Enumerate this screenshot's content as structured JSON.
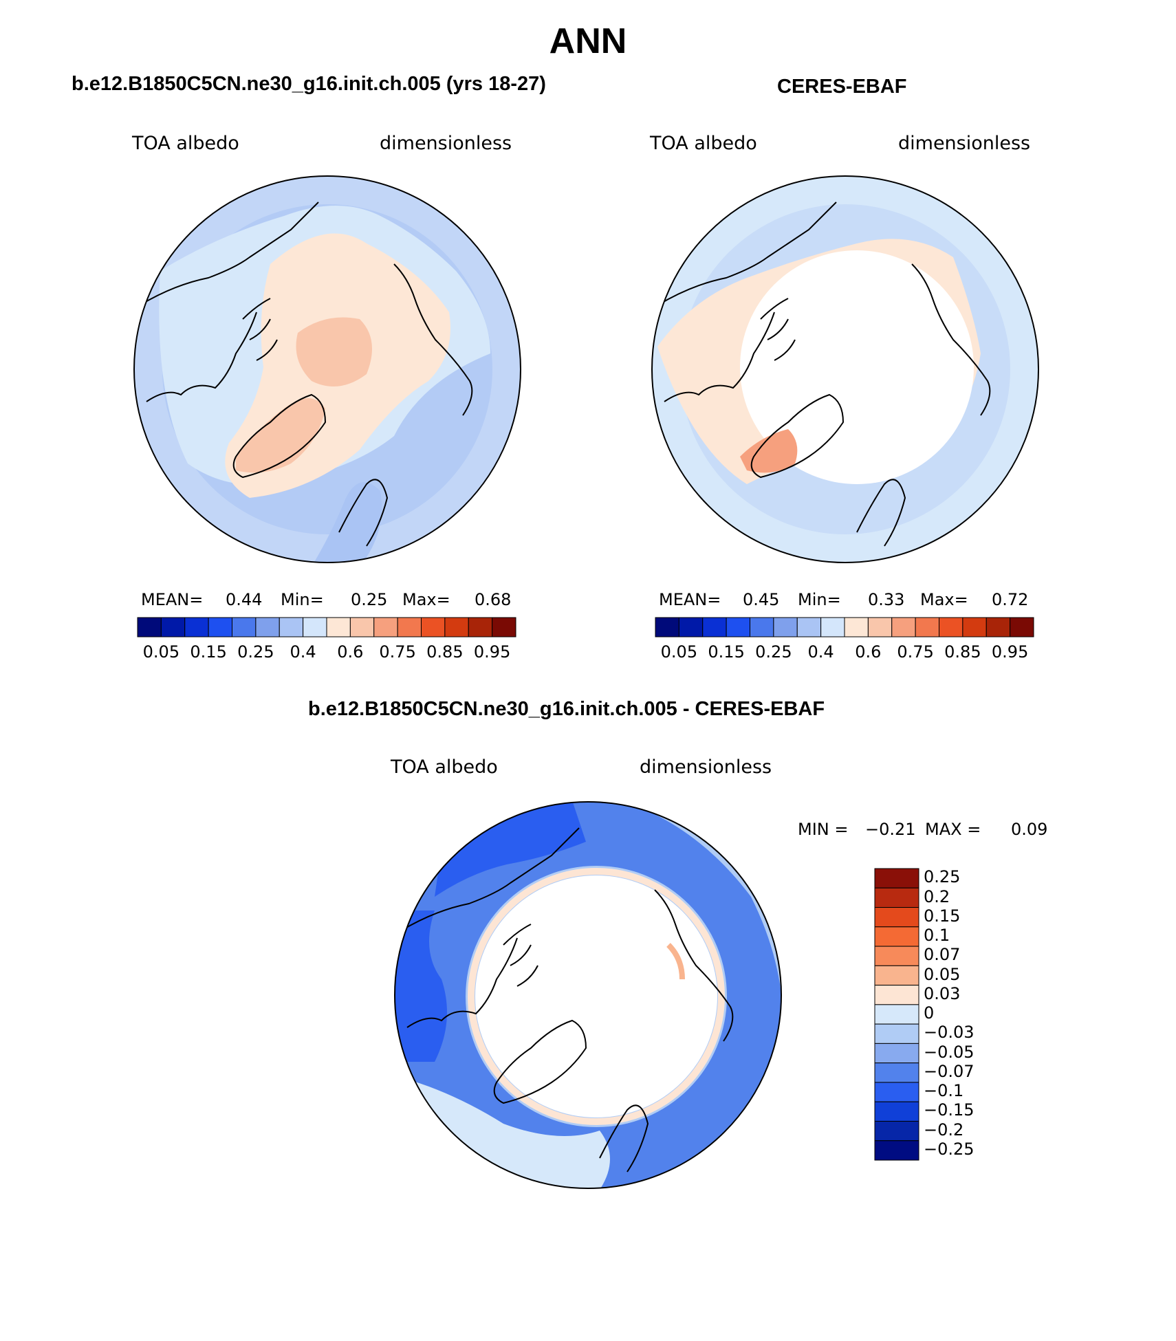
{
  "figure": {
    "title": "ANN"
  },
  "panels": [
    {
      "title": "b.e12.B1850C5CN.ne30_g16.init.ch.005 (yrs 18-27)",
      "left_label": "TOA albedo",
      "right_label": "dimensionless",
      "stats": {
        "mean_label": "MEAN=",
        "mean": "0.44",
        "min_label": "Min=",
        "min": "0.25",
        "max_label": "Max=",
        "max": "0.68"
      }
    },
    {
      "title": "CERES-EBAF",
      "left_label": "TOA albedo",
      "right_label": "dimensionless",
      "stats": {
        "mean_label": "MEAN=",
        "mean": "0.45",
        "min_label": "Min=",
        "min": "0.33",
        "max_label": "Max=",
        "max": "0.72"
      }
    },
    {
      "title": "b.e12.B1850C5CN.ne30_g16.init.ch.005 - CERES-EBAF",
      "left_label": "TOA albedo",
      "right_label": "dimensionless",
      "stats": {
        "min_label": "MIN =",
        "min": "−0.21",
        "max_label": "MAX =",
        "max": "0.09"
      }
    }
  ],
  "colorbars": {
    "albedo": {
      "colors": [
        "#000a7a",
        "#0019a8",
        "#0a30d4",
        "#1e50f0",
        "#4a78ec",
        "#7fa0ec",
        "#aac4f4",
        "#d4e6fb",
        "#fde7d6",
        "#f9c6ab",
        "#f6a07e",
        "#f2784e",
        "#eb5224",
        "#d33b10",
        "#a82408",
        "#7a0a04"
      ],
      "tick_labels": [
        "0.05",
        "0.15",
        "0.25",
        "0.4",
        "0.6",
        "0.75",
        "0.85",
        "0.95"
      ]
    },
    "difference": {
      "colors_top_to_bottom": [
        "#8a1008",
        "#b82a10",
        "#e44a1c",
        "#f46a34",
        "#f78a5a",
        "#f9b48e",
        "#fde5d4",
        "#d6e8fa",
        "#b0ccf5",
        "#88aaef",
        "#5282ec",
        "#2a5ef0",
        "#1040d8",
        "#0626a8",
        "#000c82"
      ],
      "tick_labels": [
        "0.25",
        "0.2",
        "0.15",
        "0.1",
        "0.07",
        "0.05",
        "0.03",
        "0",
        "−0.03",
        "−0.05",
        "−0.07",
        "−0.1",
        "−0.15",
        "−0.2",
        "−0.25"
      ]
    }
  }
}
